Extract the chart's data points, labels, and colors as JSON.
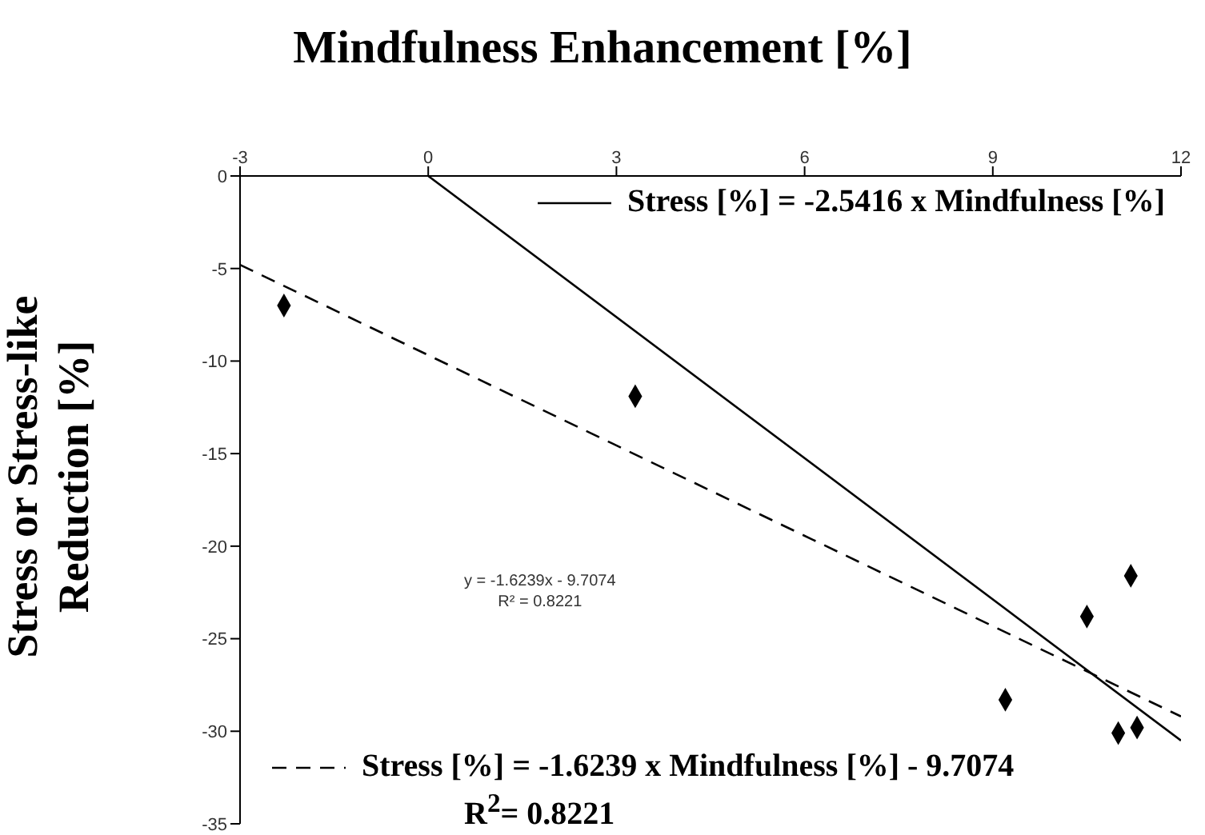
{
  "chart_data": {
    "type": "scatter",
    "title": "Mindfulness Enhancement [%]",
    "ylabel": "Stress or Stress-like Reduction [%]",
    "series": [
      {
        "color": "#000000",
        "marker": "diamond",
        "x": [
          -2.3,
          3.3,
          9.2,
          10.5,
          11.2,
          11.0,
          11.3
        ],
        "values": [
          -7.0,
          -11.9,
          -28.3,
          -23.8,
          -21.6,
          -30.1,
          -29.8
        ]
      },
      {
        "type": "line",
        "name": "Stress [%] = -2.5416 x Mindfulness [%]",
        "color": "#000000",
        "marker": "none",
        "line_style": "solid",
        "x": [
          0,
          12
        ],
        "values": [
          0,
          -30.5
        ]
      },
      {
        "type": "line",
        "name": "Stress [%] = -1.6239 x Mindfulness [%] - 9.7074",
        "color": "#000000",
        "marker": "none",
        "line_style": "dashed",
        "x": [
          -3,
          12
        ],
        "values": [
          -4.8,
          -29.2
        ]
      }
    ],
    "xlim": [
      -3,
      12
    ],
    "xticks": [
      -3,
      0,
      3,
      6,
      9,
      12
    ],
    "ylim": [
      -35,
      0
    ],
    "yticks": [
      0,
      -5,
      -10,
      -15,
      -20,
      -25,
      -30,
      -35
    ],
    "legend": "top right",
    "grid": false,
    "annotations": [
      "y = -1.6239x - 9.7074",
      "R² = 0.8221",
      "R$^{2}$= 0.8221"
    ]
  }
}
